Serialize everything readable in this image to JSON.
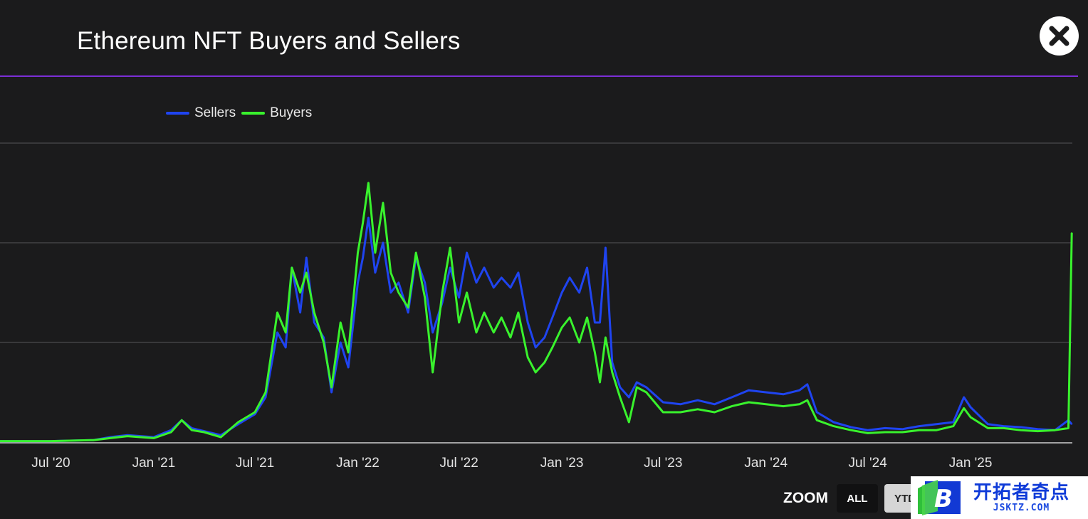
{
  "header": {
    "title": "Ethereum NFT Buyers and Sellers",
    "divider_color": "#7b2fd6",
    "close_icon": "close-icon"
  },
  "legend": {
    "items": [
      {
        "label": "Sellers",
        "color": "#1f44f0"
      },
      {
        "label": "Buyers",
        "color": "#39f22d"
      }
    ]
  },
  "zoom": {
    "label": "ZOOM",
    "buttons": [
      {
        "label": "ALL",
        "selected": true
      },
      {
        "label": "YTD",
        "selected": false
      }
    ]
  },
  "watermark": {
    "logo_letter": "B",
    "text_cn": "开拓者奇点",
    "text_en": "JSKTZ.COM"
  },
  "chart_data": {
    "type": "line",
    "title": "Ethereum NFT Buyers and Sellers",
    "xlabel": "",
    "ylabel": "",
    "y_tick_labels_shown": false,
    "grid": true,
    "legend_position": "top-left",
    "x_tick_labels": [
      "Jul '20",
      "Jan '21",
      "Jul '21",
      "Jan '22",
      "Jul '22",
      "Jan '23",
      "Jul '23",
      "Jan '24",
      "Jul '24",
      "Jan '25"
    ],
    "xlim": [
      "2020-04-01",
      "2025-07-02"
    ],
    "ylim": [
      0,
      3
    ],
    "y_gridlines": [
      1,
      2,
      3
    ],
    "colors": {
      "Sellers": "#1f44f0",
      "Buyers": "#39f22d"
    },
    "series": [
      {
        "name": "Sellers",
        "points": [
          [
            "2020-04-01",
            0.01
          ],
          [
            "2020-07-01",
            0.01
          ],
          [
            "2020-09-15",
            0.02
          ],
          [
            "2020-10-15",
            0.05
          ],
          [
            "2020-11-15",
            0.07
          ],
          [
            "2021-01-01",
            0.05
          ],
          [
            "2021-02-01",
            0.12
          ],
          [
            "2021-02-20",
            0.22
          ],
          [
            "2021-03-10",
            0.14
          ],
          [
            "2021-04-01",
            0.11
          ],
          [
            "2021-05-01",
            0.07
          ],
          [
            "2021-06-01",
            0.18
          ],
          [
            "2021-07-01",
            0.28
          ],
          [
            "2021-07-20",
            0.45
          ],
          [
            "2021-08-10",
            1.1
          ],
          [
            "2021-08-25",
            0.95
          ],
          [
            "2021-09-05",
            1.75
          ],
          [
            "2021-09-20",
            1.3
          ],
          [
            "2021-10-01",
            1.85
          ],
          [
            "2021-10-15",
            1.2
          ],
          [
            "2021-11-01",
            1.05
          ],
          [
            "2021-11-15",
            0.5
          ],
          [
            "2021-12-01",
            1.0
          ],
          [
            "2021-12-15",
            0.75
          ],
          [
            "2022-01-01",
            1.6
          ],
          [
            "2022-01-10",
            1.85
          ],
          [
            "2022-01-20",
            2.25
          ],
          [
            "2022-02-01",
            1.7
          ],
          [
            "2022-02-15",
            2.0
          ],
          [
            "2022-03-01",
            1.5
          ],
          [
            "2022-03-15",
            1.6
          ],
          [
            "2022-04-01",
            1.3
          ],
          [
            "2022-04-15",
            1.85
          ],
          [
            "2022-05-01",
            1.6
          ],
          [
            "2022-05-15",
            1.1
          ],
          [
            "2022-06-01",
            1.4
          ],
          [
            "2022-06-15",
            1.75
          ],
          [
            "2022-07-01",
            1.45
          ],
          [
            "2022-07-15",
            1.9
          ],
          [
            "2022-08-01",
            1.6
          ],
          [
            "2022-08-15",
            1.75
          ],
          [
            "2022-09-01",
            1.55
          ],
          [
            "2022-09-15",
            1.65
          ],
          [
            "2022-10-01",
            1.55
          ],
          [
            "2022-10-15",
            1.7
          ],
          [
            "2022-11-01",
            1.2
          ],
          [
            "2022-11-15",
            0.95
          ],
          [
            "2022-12-01",
            1.05
          ],
          [
            "2022-12-15",
            1.25
          ],
          [
            "2023-01-01",
            1.5
          ],
          [
            "2023-01-15",
            1.65
          ],
          [
            "2023-02-01",
            1.5
          ],
          [
            "2023-02-15",
            1.75
          ],
          [
            "2023-03-01",
            1.2
          ],
          [
            "2023-03-10",
            1.2
          ],
          [
            "2023-03-20",
            1.95
          ],
          [
            "2023-04-01",
            0.8
          ],
          [
            "2023-04-15",
            0.55
          ],
          [
            "2023-05-01",
            0.45
          ],
          [
            "2023-05-15",
            0.6
          ],
          [
            "2023-06-01",
            0.55
          ],
          [
            "2023-07-01",
            0.4
          ],
          [
            "2023-08-01",
            0.38
          ],
          [
            "2023-09-01",
            0.42
          ],
          [
            "2023-10-01",
            0.38
          ],
          [
            "2023-11-01",
            0.45
          ],
          [
            "2023-12-01",
            0.52
          ],
          [
            "2024-01-01",
            0.5
          ],
          [
            "2024-02-01",
            0.48
          ],
          [
            "2024-03-01",
            0.52
          ],
          [
            "2024-03-15",
            0.58
          ],
          [
            "2024-04-01",
            0.3
          ],
          [
            "2024-05-01",
            0.2
          ],
          [
            "2024-06-01",
            0.15
          ],
          [
            "2024-07-01",
            0.12
          ],
          [
            "2024-08-01",
            0.14
          ],
          [
            "2024-09-01",
            0.13
          ],
          [
            "2024-10-01",
            0.16
          ],
          [
            "2024-11-01",
            0.18
          ],
          [
            "2024-12-01",
            0.2
          ],
          [
            "2024-12-20",
            0.45
          ],
          [
            "2025-01-01",
            0.35
          ],
          [
            "2025-02-01",
            0.18
          ],
          [
            "2025-03-01",
            0.16
          ],
          [
            "2025-04-01",
            0.15
          ],
          [
            "2025-05-01",
            0.13
          ],
          [
            "2025-06-01",
            0.12
          ],
          [
            "2025-06-25",
            0.22
          ],
          [
            "2025-07-01",
            0.18
          ]
        ]
      },
      {
        "name": "Buyers",
        "points": [
          [
            "2020-04-01",
            0.01
          ],
          [
            "2020-07-01",
            0.01
          ],
          [
            "2020-09-15",
            0.02
          ],
          [
            "2020-10-15",
            0.04
          ],
          [
            "2020-11-15",
            0.06
          ],
          [
            "2021-01-01",
            0.04
          ],
          [
            "2021-02-01",
            0.1
          ],
          [
            "2021-02-20",
            0.22
          ],
          [
            "2021-03-10",
            0.12
          ],
          [
            "2021-04-01",
            0.1
          ],
          [
            "2021-05-01",
            0.05
          ],
          [
            "2021-06-01",
            0.2
          ],
          [
            "2021-07-01",
            0.3
          ],
          [
            "2021-07-20",
            0.5
          ],
          [
            "2021-08-10",
            1.3
          ],
          [
            "2021-08-25",
            1.1
          ],
          [
            "2021-09-05",
            1.75
          ],
          [
            "2021-09-20",
            1.5
          ],
          [
            "2021-10-01",
            1.7
          ],
          [
            "2021-10-15",
            1.3
          ],
          [
            "2021-11-01",
            1.0
          ],
          [
            "2021-11-15",
            0.55
          ],
          [
            "2021-12-01",
            1.2
          ],
          [
            "2021-12-15",
            0.9
          ],
          [
            "2022-01-01",
            1.9
          ],
          [
            "2022-01-10",
            2.2
          ],
          [
            "2022-01-20",
            2.6
          ],
          [
            "2022-02-01",
            1.9
          ],
          [
            "2022-02-15",
            2.4
          ],
          [
            "2022-03-01",
            1.7
          ],
          [
            "2022-03-15",
            1.5
          ],
          [
            "2022-04-01",
            1.35
          ],
          [
            "2022-04-15",
            1.9
          ],
          [
            "2022-05-01",
            1.45
          ],
          [
            "2022-05-15",
            0.7
          ],
          [
            "2022-06-01",
            1.5
          ],
          [
            "2022-06-15",
            1.95
          ],
          [
            "2022-07-01",
            1.2
          ],
          [
            "2022-07-15",
            1.5
          ],
          [
            "2022-08-01",
            1.1
          ],
          [
            "2022-08-15",
            1.3
          ],
          [
            "2022-09-01",
            1.1
          ],
          [
            "2022-09-15",
            1.25
          ],
          [
            "2022-10-01",
            1.05
          ],
          [
            "2022-10-15",
            1.3
          ],
          [
            "2022-11-01",
            0.85
          ],
          [
            "2022-11-15",
            0.7
          ],
          [
            "2022-12-01",
            0.8
          ],
          [
            "2022-12-15",
            0.95
          ],
          [
            "2023-01-01",
            1.15
          ],
          [
            "2023-01-15",
            1.25
          ],
          [
            "2023-02-01",
            1.0
          ],
          [
            "2023-02-15",
            1.25
          ],
          [
            "2023-03-01",
            0.9
          ],
          [
            "2023-03-10",
            0.6
          ],
          [
            "2023-03-20",
            1.05
          ],
          [
            "2023-04-01",
            0.7
          ],
          [
            "2023-04-15",
            0.45
          ],
          [
            "2023-05-01",
            0.2
          ],
          [
            "2023-05-15",
            0.55
          ],
          [
            "2023-06-01",
            0.5
          ],
          [
            "2023-07-01",
            0.3
          ],
          [
            "2023-08-01",
            0.3
          ],
          [
            "2023-09-01",
            0.33
          ],
          [
            "2023-10-01",
            0.3
          ],
          [
            "2023-11-01",
            0.36
          ],
          [
            "2023-12-01",
            0.4
          ],
          [
            "2024-01-01",
            0.38
          ],
          [
            "2024-02-01",
            0.36
          ],
          [
            "2024-03-01",
            0.38
          ],
          [
            "2024-03-15",
            0.42
          ],
          [
            "2024-04-01",
            0.22
          ],
          [
            "2024-05-01",
            0.16
          ],
          [
            "2024-06-01",
            0.12
          ],
          [
            "2024-07-01",
            0.09
          ],
          [
            "2024-08-01",
            0.1
          ],
          [
            "2024-09-01",
            0.1
          ],
          [
            "2024-10-01",
            0.12
          ],
          [
            "2024-11-01",
            0.12
          ],
          [
            "2024-12-01",
            0.16
          ],
          [
            "2024-12-20",
            0.34
          ],
          [
            "2025-01-01",
            0.25
          ],
          [
            "2025-02-01",
            0.14
          ],
          [
            "2025-03-01",
            0.14
          ],
          [
            "2025-04-01",
            0.12
          ],
          [
            "2025-05-01",
            0.11
          ],
          [
            "2025-06-01",
            0.12
          ],
          [
            "2025-06-25",
            0.14
          ],
          [
            "2025-07-01",
            2.1
          ]
        ]
      }
    ]
  }
}
